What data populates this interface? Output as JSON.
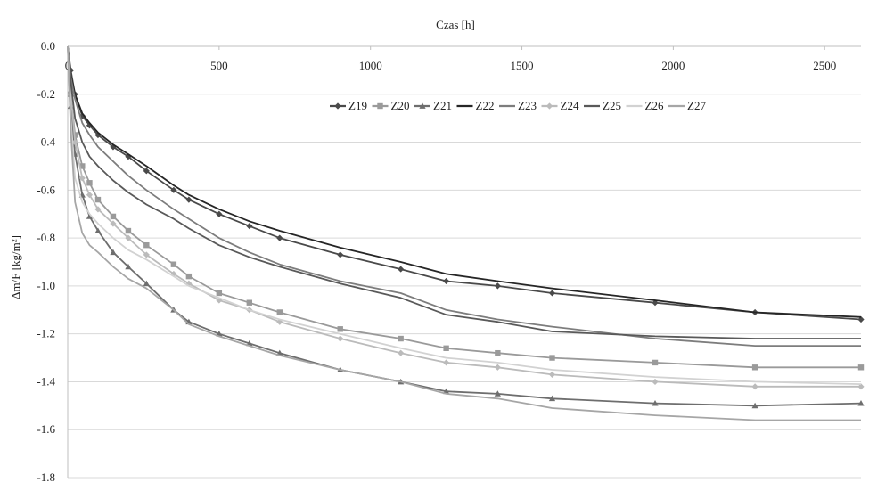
{
  "chart_data": {
    "type": "line",
    "title": "",
    "xlabel": "Czas [h]",
    "ylabel": "Δm/F [kg/m²]",
    "xlim": [
      0,
      2620
    ],
    "ylim": [
      -1.8,
      0
    ],
    "x_ticks": [
      0,
      500,
      1000,
      1500,
      2000,
      2500
    ],
    "y_ticks": [
      0.0,
      -0.2,
      -0.4,
      -0.6,
      -0.8,
      -1.0,
      -1.2,
      -1.4,
      -1.6,
      -1.8
    ],
    "x_tick_labels": [
      "0",
      "500",
      "1000",
      "1500",
      "2000",
      "2500"
    ],
    "y_tick_labels": [
      "0.0",
      "-0.2",
      "-0.4",
      "-0.6",
      "-0.8",
      "-1.0",
      "-1.2",
      "-1.4",
      "-1.6",
      "-1.8"
    ],
    "x_axis_position": "top",
    "grid": {
      "horizontal": true,
      "vertical": false
    },
    "legend_position": "top-right",
    "series": [
      {
        "name": "Z19",
        "color": "#4a4a4a",
        "marker": "diamond",
        "x": [
          0,
          10,
          24,
          48,
          72,
          100,
          150,
          200,
          260,
          350,
          400,
          500,
          600,
          700,
          900,
          1100,
          1250,
          1420,
          1600,
          1940,
          2270,
          2620
        ],
        "y": [
          0,
          -0.1,
          -0.2,
          -0.29,
          -0.33,
          -0.37,
          -0.42,
          -0.46,
          -0.52,
          -0.6,
          -0.64,
          -0.7,
          -0.75,
          -0.8,
          -0.87,
          -0.93,
          -0.98,
          -1.0,
          -1.03,
          -1.07,
          -1.11,
          -1.14
        ]
      },
      {
        "name": "Z20",
        "color": "#9a9a9a",
        "marker": "square",
        "x": [
          0,
          10,
          24,
          48,
          72,
          100,
          150,
          200,
          260,
          350,
          400,
          500,
          600,
          700,
          900,
          1100,
          1250,
          1420,
          1600,
          1940,
          2270,
          2620
        ],
        "y": [
          0,
          -0.2,
          -0.37,
          -0.5,
          -0.57,
          -0.64,
          -0.71,
          -0.77,
          -0.83,
          -0.91,
          -0.96,
          -1.03,
          -1.07,
          -1.11,
          -1.18,
          -1.22,
          -1.26,
          -1.28,
          -1.3,
          -1.32,
          -1.34,
          -1.34
        ]
      },
      {
        "name": "Z21",
        "color": "#6e6e6e",
        "marker": "triangle",
        "x": [
          0,
          10,
          24,
          48,
          72,
          100,
          150,
          200,
          260,
          350,
          400,
          500,
          600,
          700,
          900,
          1100,
          1250,
          1420,
          1600,
          1940,
          2270,
          2620
        ],
        "y": [
          0,
          -0.25,
          -0.45,
          -0.62,
          -0.71,
          -0.77,
          -0.86,
          -0.92,
          -0.99,
          -1.1,
          -1.15,
          -1.2,
          -1.24,
          -1.28,
          -1.35,
          -1.4,
          -1.44,
          -1.45,
          -1.47,
          -1.49,
          -1.5,
          -1.49
        ]
      },
      {
        "name": "Z22",
        "color": "#262626",
        "marker": "none",
        "x": [
          0,
          10,
          24,
          48,
          72,
          100,
          150,
          200,
          260,
          350,
          400,
          500,
          600,
          700,
          900,
          1100,
          1250,
          1420,
          1600,
          1940,
          2270,
          2620
        ],
        "y": [
          0,
          -0.12,
          -0.2,
          -0.28,
          -0.32,
          -0.36,
          -0.41,
          -0.45,
          -0.5,
          -0.58,
          -0.62,
          -0.68,
          -0.73,
          -0.77,
          -0.84,
          -0.9,
          -0.95,
          -0.98,
          -1.01,
          -1.06,
          -1.11,
          -1.13
        ]
      },
      {
        "name": "Z23",
        "color": "#7d7d7d",
        "marker": "none",
        "x": [
          0,
          10,
          24,
          48,
          72,
          100,
          150,
          200,
          260,
          350,
          400,
          500,
          600,
          700,
          900,
          1100,
          1250,
          1420,
          1600,
          1940,
          2270,
          2620
        ],
        "y": [
          0,
          -0.13,
          -0.22,
          -0.32,
          -0.37,
          -0.42,
          -0.48,
          -0.54,
          -0.6,
          -0.68,
          -0.72,
          -0.8,
          -0.86,
          -0.91,
          -0.98,
          -1.03,
          -1.1,
          -1.14,
          -1.17,
          -1.22,
          -1.25,
          -1.25
        ]
      },
      {
        "name": "Z24",
        "color": "#bbbbbb",
        "marker": "diamond",
        "x": [
          0,
          10,
          24,
          48,
          72,
          100,
          150,
          200,
          260,
          350,
          400,
          500,
          600,
          700,
          900,
          1100,
          1250,
          1420,
          1600,
          1940,
          2270,
          2620
        ],
        "y": [
          0,
          -0.2,
          -0.4,
          -0.55,
          -0.62,
          -0.68,
          -0.74,
          -0.8,
          -0.87,
          -0.95,
          -0.99,
          -1.06,
          -1.1,
          -1.15,
          -1.22,
          -1.28,
          -1.32,
          -1.34,
          -1.37,
          -1.4,
          -1.42,
          -1.42
        ]
      },
      {
        "name": "Z25",
        "color": "#595959",
        "marker": "none",
        "x": [
          0,
          10,
          24,
          48,
          72,
          100,
          150,
          200,
          260,
          350,
          400,
          500,
          600,
          700,
          900,
          1100,
          1250,
          1420,
          1600,
          1940,
          2270,
          2620
        ],
        "y": [
          0,
          -0.15,
          -0.3,
          -0.4,
          -0.46,
          -0.5,
          -0.56,
          -0.61,
          -0.66,
          -0.72,
          -0.76,
          -0.83,
          -0.88,
          -0.92,
          -0.99,
          -1.05,
          -1.12,
          -1.15,
          -1.19,
          -1.21,
          -1.22,
          -1.22
        ]
      },
      {
        "name": "Z26",
        "color": "#d2d2d2",
        "marker": "none",
        "x": [
          0,
          10,
          24,
          48,
          72,
          100,
          150,
          200,
          260,
          350,
          400,
          500,
          600,
          700,
          900,
          1100,
          1250,
          1420,
          1600,
          1940,
          2270,
          2620
        ],
        "y": [
          0,
          -0.3,
          -0.55,
          -0.65,
          -0.7,
          -0.74,
          -0.8,
          -0.85,
          -0.89,
          -0.96,
          -1.0,
          -1.05,
          -1.1,
          -1.14,
          -1.2,
          -1.26,
          -1.3,
          -1.32,
          -1.35,
          -1.38,
          -1.4,
          -1.41
        ]
      },
      {
        "name": "Z27",
        "color": "#a6a6a6",
        "marker": "none",
        "x": [
          0,
          10,
          24,
          48,
          72,
          100,
          150,
          200,
          260,
          350,
          400,
          500,
          600,
          700,
          900,
          1100,
          1250,
          1420,
          1600,
          1940,
          2270,
          2620
        ],
        "y": [
          0,
          -0.35,
          -0.65,
          -0.78,
          -0.83,
          -0.86,
          -0.92,
          -0.97,
          -1.01,
          -1.1,
          -1.16,
          -1.21,
          -1.25,
          -1.29,
          -1.35,
          -1.4,
          -1.45,
          -1.47,
          -1.51,
          -1.54,
          -1.56,
          -1.56
        ]
      }
    ]
  }
}
